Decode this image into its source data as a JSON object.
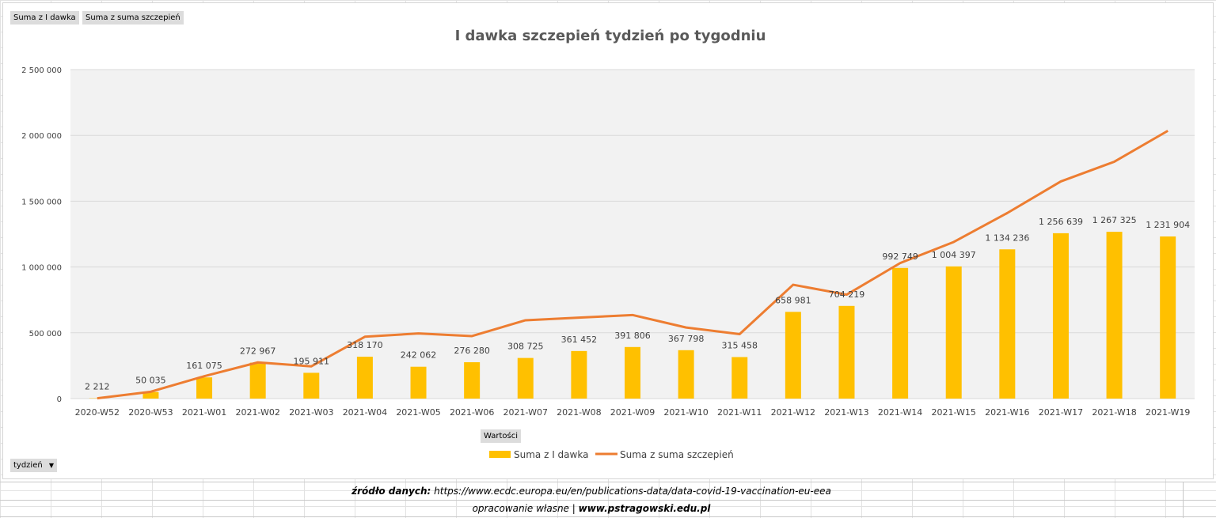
{
  "field_buttons": {
    "series1": "Suma z I dawka",
    "series2": "Suma z suma szczepień",
    "values": "Wartości",
    "axis": "tydzień"
  },
  "footer": {
    "source_label": "źródło danych:",
    "source_url": "https://www.ecdc.europa.eu/en/publications-data/data-covid-19-vaccination-eu-eea",
    "credit_text": "opracowanie własne |",
    "credit_url": "www.pstragowski.edu.pl"
  },
  "colors": {
    "bar": "#ffc000",
    "line": "#ed7d31",
    "plot_bg": "#f2f2f2",
    "gridline": "#d9d9d9",
    "title": "#595959",
    "axis_text": "#404040"
  },
  "chart_data": {
    "type": "bar",
    "title": "I dawka szczepień tydzień po tygodniu",
    "xlabel": "",
    "ylabel": "",
    "ylim": [
      0,
      2500000
    ],
    "yticks": [
      0,
      500000,
      1000000,
      1500000,
      2000000,
      2500000
    ],
    "ytick_labels": [
      "0",
      "500 000",
      "1 000 000",
      "1 500 000",
      "2 000 000",
      "2 500 000"
    ],
    "grid": true,
    "legend": "bottom",
    "categories": [
      "2020-W52",
      "2020-W53",
      "2021-W01",
      "2021-W02",
      "2021-W03",
      "2021-W04",
      "2021-W05",
      "2021-W06",
      "2021-W07",
      "2021-W08",
      "2021-W09",
      "2021-W10",
      "2021-W11",
      "2021-W12",
      "2021-W13",
      "2021-W14",
      "2021-W15",
      "2021-W16",
      "2021-W17",
      "2021-W18",
      "2021-W19"
    ],
    "series": [
      {
        "name": "Suma z I dawka",
        "type": "bar",
        "values": [
          2212,
          50035,
          161075,
          272967,
          195911,
          318170,
          242062,
          276280,
          308725,
          361452,
          391806,
          367798,
          315458,
          658981,
          704219,
          992749,
          1004397,
          1134236,
          1256639,
          1267325,
          1231904
        ],
        "labels": [
          "2 212",
          "50 035",
          "161 075",
          "272 967",
          "195 911",
          "318 170",
          "242 062",
          "276 280",
          "308 725",
          "361 452",
          "391 806",
          "367 798",
          "315 458",
          "658 981",
          "704 219",
          "992 749",
          "1 004 397",
          "1 134 236",
          "1 256 639",
          "1 267 325",
          "1 231 904"
        ]
      },
      {
        "name": "Suma z suma szczepień",
        "type": "line",
        "values": [
          2212,
          52000,
          170000,
          275000,
          245000,
          470000,
          495000,
          475000,
          595000,
          615000,
          635000,
          540000,
          490000,
          865000,
          790000,
          1030000,
          1190000,
          1410000,
          1650000,
          1800000,
          2035000
        ]
      }
    ]
  }
}
